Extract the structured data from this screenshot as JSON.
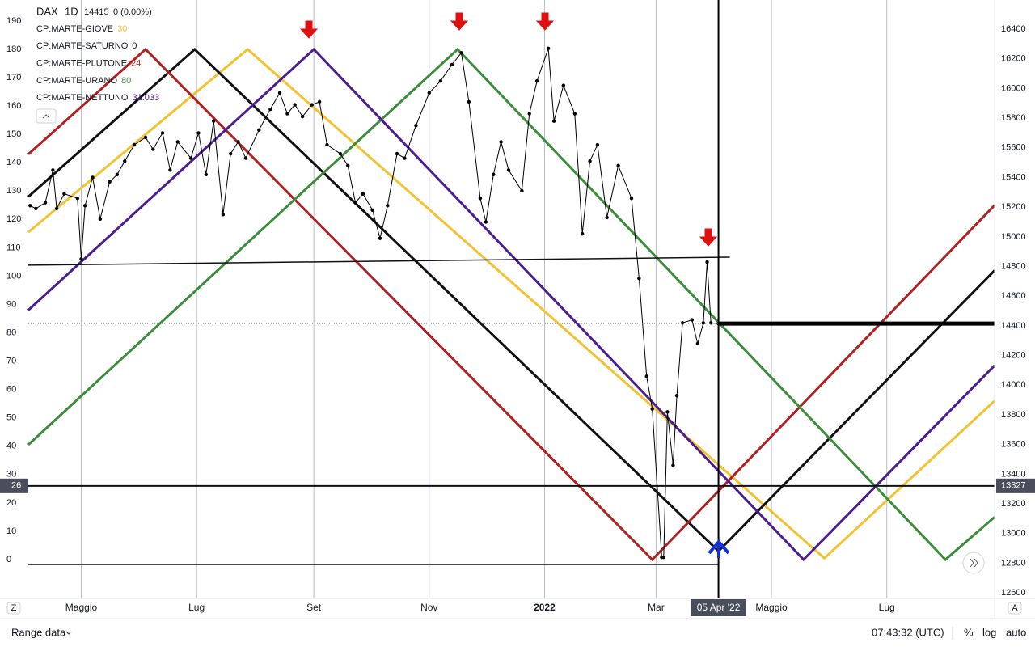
{
  "chart_data": {
    "type": "line",
    "symbol": "DAX",
    "interval": "1D",
    "last": 14415,
    "change": "0 (0.00%)",
    "xlim": [
      0,
      511
    ],
    "xticks": [
      {
        "value": 28,
        "label": "Maggio"
      },
      {
        "value": 89,
        "label": "Lug"
      },
      {
        "value": 151,
        "label": "Set"
      },
      {
        "value": 212,
        "label": "Nov"
      },
      {
        "value": 273,
        "label": "2022"
      },
      {
        "value": 332,
        "label": "Mar"
      },
      {
        "value": 393,
        "label": "Maggio"
      },
      {
        "value": 454,
        "label": "Lug"
      }
    ],
    "ylim": [
      -13.7,
      197.4
    ],
    "yticks": [
      0,
      10,
      20,
      30,
      40,
      50,
      60,
      70,
      80,
      90,
      100,
      110,
      120,
      130,
      140,
      150,
      160,
      170,
      180,
      190
    ],
    "y2lim": [
      12563,
      16596
    ],
    "y2ticks": [
      12600,
      12800,
      13000,
      13200,
      13400,
      13600,
      13800,
      14000,
      14200,
      14400,
      14600,
      14800,
      15000,
      15200,
      15400,
      15600,
      15800,
      16000,
      16200,
      16400
    ],
    "grid": true,
    "crosshair": {
      "x": 365,
      "label": "05 Apr '22"
    },
    "levels": [
      {
        "value": 26,
        "axis": "y",
        "right_value": 13327
      },
      {
        "value": 14415,
        "axis": "y2"
      }
    ],
    "trendlines": [
      {
        "x": [
          0,
          371
        ],
        "values": [
          14809,
          14863
        ]
      },
      {
        "x": [
          0,
          365
        ],
        "values": [
          12792,
          12792
        ]
      }
    ],
    "series": [
      {
        "name": "CP:MARTE-GIOVE",
        "last_value": 30,
        "color": "#f2c230",
        "x": [
          0,
          116,
          421,
          511
        ],
        "values": [
          115.5,
          180,
          0.5,
          56
        ]
      },
      {
        "name": "CP:MARTE-SATURNO",
        "last_value": 0,
        "color": "#111111",
        "x": [
          0,
          88,
          365,
          511
        ],
        "values": [
          128,
          180,
          3,
          102
        ]
      },
      {
        "name": "CP:MARTE-PLUTONE",
        "last_value": 24,
        "color": "#b02020",
        "x": [
          0,
          62,
          330,
          511
        ],
        "values": [
          143,
          180,
          0,
          125
        ]
      },
      {
        "name": "CP:MARTE-URANO",
        "last_value": 80,
        "color": "#3b8c3b",
        "x": [
          0,
          227,
          485,
          511
        ],
        "values": [
          40.5,
          180,
          0,
          15
        ]
      },
      {
        "name": "CP:MARTE-NETTUNO",
        "last_value": 31.033,
        "color": "#4b1d8f",
        "x": [
          0,
          151,
          410,
          511
        ],
        "values": [
          88,
          180,
          0,
          68.5
        ]
      },
      {
        "name": "DAX",
        "axis": "y2",
        "color": "#000000",
        "x": [
          1,
          4,
          9,
          13,
          15,
          19,
          26,
          28,
          30,
          34,
          38,
          43,
          47,
          51,
          56,
          62,
          66,
          71,
          75,
          79,
          86,
          90,
          94,
          98,
          103,
          107,
          111,
          115,
          122,
          128,
          133,
          137,
          141,
          145,
          150,
          154,
          158,
          165,
          169,
          173,
          177,
          182,
          186,
          190,
          195,
          199,
          205,
          212,
          218,
          224,
          229,
          233,
          239,
          242,
          246,
          250,
          254,
          261,
          265,
          269,
          275,
          278,
          283,
          289,
          293,
          297,
          301,
          306,
          312,
          319,
          323,
          327,
          330,
          335,
          336,
          338,
          341,
          343,
          346,
          351,
          354,
          357,
          359,
          361,
          365
        ],
        "values": [
          15210,
          15190,
          15230,
          15450,
          15190,
          15290,
          15260,
          14850,
          15210,
          15400,
          15120,
          15370,
          15420,
          15510,
          15620,
          15670,
          15590,
          15700,
          15450,
          15640,
          15530,
          15700,
          15420,
          15780,
          15150,
          15560,
          15640,
          15530,
          15720,
          15860,
          15970,
          15830,
          15890,
          15810,
          15890,
          15910,
          15620,
          15560,
          15480,
          15230,
          15290,
          15180,
          14990,
          15210,
          15560,
          15530,
          15750,
          15970,
          16050,
          16160,
          16240,
          15910,
          15260,
          15100,
          15420,
          15640,
          15450,
          15310,
          15830,
          16050,
          16270,
          15780,
          16020,
          15830,
          15020,
          15510,
          15620,
          15130,
          15480,
          15260,
          14720,
          14060,
          13840,
          12840,
          12840,
          13820,
          13460,
          13930,
          14420,
          14440,
          14280,
          14420,
          14830,
          14420,
          14415
        ]
      }
    ],
    "footer": {
      "range": "Range data",
      "time": "07:43:32 (UTC)",
      "percent": "%",
      "log": "log",
      "auto": "auto",
      "left_button": "Z",
      "right_button": "A"
    }
  }
}
